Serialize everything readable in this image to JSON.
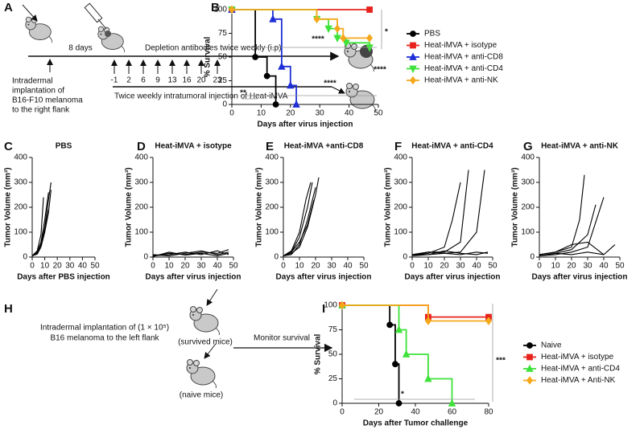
{
  "diagram_a": {
    "panel": "A",
    "interval": "8 days",
    "depletion": "Depletion antibodies twice weekly (i.p)",
    "days": [
      "-1",
      "2",
      "6",
      "9",
      "13",
      "16",
      "20",
      "23"
    ],
    "implant": [
      "Intradermal",
      "implantation of",
      "B16-F10 melanoma",
      "to the right flank"
    ],
    "injection": "Twice weekly intratumoral injection of Heat-iMVA"
  },
  "diagram_h": {
    "panel": "H",
    "implant": [
      "Intradermal implantation of (1 × 10⁵)",
      "B16 melanoma to the left flank"
    ],
    "survived": "(survived mice)",
    "naive": "(naive mice)",
    "monitor": "Monitor survival"
  },
  "chart_data": [
    {
      "type": "line",
      "step": true,
      "markers": true,
      "panel": "B",
      "xlabel": "Days after virus injection",
      "ylabel": "% Survival",
      "xlim": [
        0,
        50
      ],
      "xticks": [
        0,
        10,
        20,
        30,
        40,
        50
      ],
      "ylim": [
        0,
        100
      ],
      "yticks": [
        0,
        25,
        50,
        75,
        100
      ],
      "legend": "right",
      "series": [
        {
          "name": "PBS",
          "color": "#000000",
          "marker": "circle",
          "x": [
            0,
            8,
            12,
            15
          ],
          "values": [
            100,
            50,
            30,
            0
          ]
        },
        {
          "name": "Heat-iMVA + isotype",
          "color": "#e8231d",
          "marker": "square",
          "x": [
            0,
            47
          ],
          "values": [
            100,
            100
          ]
        },
        {
          "name": "Heat-iMVA + anti-CD8",
          "color": "#1f2fd6",
          "marker": "triangle",
          "x": [
            0,
            14,
            17,
            20,
            22
          ],
          "values": [
            100,
            90,
            40,
            20,
            0
          ]
        },
        {
          "name": "Heat-iMVA + anti-CD4",
          "color": "#3ee23a",
          "marker": "triangle-down",
          "x": [
            0,
            29,
            33,
            36,
            39,
            47
          ],
          "values": [
            100,
            90,
            80,
            70,
            65,
            60
          ]
        },
        {
          "name": "Heat-iMVA + anti-NK",
          "color": "#f6a81c",
          "marker": "diamond",
          "x": [
            0,
            29,
            36,
            38,
            47
          ],
          "values": [
            100,
            90,
            80,
            70,
            70
          ]
        }
      ],
      "annotations": [
        "*",
        "****",
        "****",
        "****",
        "**"
      ]
    },
    {
      "type": "line",
      "step": false,
      "markers": false,
      "panel": "C",
      "title": "PBS",
      "color": "#000000",
      "xlabel": "Days after PBS injection",
      "ylabel": "Tumor Volume (mm³)",
      "xlim": [
        0,
        50
      ],
      "xticks": [
        0,
        10,
        20,
        30,
        40,
        50
      ],
      "ylim": [
        0,
        400
      ],
      "yticks": [
        0,
        100,
        200,
        300,
        400
      ],
      "series": [
        {
          "x": [
            0,
            4,
            7,
            10,
            13
          ],
          "values": [
            5,
            20,
            60,
            150,
            260
          ]
        },
        {
          "x": [
            0,
            4,
            7,
            10,
            13,
            15
          ],
          "values": [
            5,
            15,
            50,
            120,
            230,
            300
          ]
        },
        {
          "x": [
            0,
            4,
            7,
            9
          ],
          "values": [
            5,
            25,
            90,
            240
          ]
        },
        {
          "x": [
            0,
            4,
            7,
            10,
            13
          ],
          "values": [
            5,
            18,
            55,
            110,
            190
          ]
        },
        {
          "x": [
            0,
            4,
            7,
            10,
            13,
            15
          ],
          "values": [
            5,
            12,
            40,
            100,
            180,
            270
          ]
        }
      ]
    },
    {
      "type": "line",
      "step": false,
      "markers": false,
      "panel": "D",
      "title": "Heat-iMVA + isotype",
      "color": "#000000",
      "xlabel": "Days after virus injection",
      "ylabel": "Tumor Volume (mm³)",
      "xlim": [
        0,
        50
      ],
      "xticks": [
        0,
        10,
        20,
        30,
        40,
        50
      ],
      "ylim": [
        0,
        400
      ],
      "yticks": [
        0,
        100,
        200,
        300,
        400
      ],
      "series": [
        {
          "x": [
            0,
            10,
            20,
            30,
            40,
            47
          ],
          "values": [
            5,
            15,
            10,
            20,
            15,
            30
          ]
        },
        {
          "x": [
            0,
            10,
            20,
            30,
            40,
            47
          ],
          "values": [
            5,
            10,
            20,
            10,
            25,
            10
          ]
        },
        {
          "x": [
            0,
            10,
            20,
            30,
            40,
            47
          ],
          "values": [
            10,
            5,
            15,
            25,
            10,
            20
          ]
        },
        {
          "x": [
            0,
            10,
            20,
            30,
            40,
            47
          ],
          "values": [
            2,
            20,
            8,
            15,
            5,
            15
          ]
        }
      ]
    },
    {
      "type": "line",
      "step": false,
      "markers": false,
      "panel": "E",
      "title": "Heat-iMVA +anti-CD8",
      "color": "#000000",
      "xlabel": "Days after virus injection",
      "ylabel": "Tumor Volume (mm³)",
      "xlim": [
        0,
        50
      ],
      "xticks": [
        0,
        10,
        20,
        30,
        40,
        50
      ],
      "ylim": [
        0,
        400
      ],
      "yticks": [
        0,
        100,
        200,
        300,
        400
      ],
      "series": [
        {
          "x": [
            0,
            5,
            10,
            15,
            18
          ],
          "values": [
            5,
            20,
            80,
            200,
            300
          ]
        },
        {
          "x": [
            0,
            5,
            10,
            15,
            20,
            22
          ],
          "values": [
            5,
            15,
            40,
            120,
            250,
            320
          ]
        },
        {
          "x": [
            0,
            5,
            10,
            14,
            17
          ],
          "values": [
            5,
            25,
            100,
            230,
            300
          ]
        },
        {
          "x": [
            0,
            5,
            10,
            15,
            20
          ],
          "values": [
            5,
            10,
            50,
            150,
            280
          ]
        },
        {
          "x": [
            0,
            5,
            10,
            15,
            19
          ],
          "values": [
            5,
            20,
            60,
            130,
            230
          ]
        }
      ]
    },
    {
      "type": "line",
      "step": false,
      "markers": false,
      "panel": "F",
      "title": "Heat-iMVA + anti-CD4",
      "color": "#000000",
      "xlabel": "Days after virus injection",
      "ylabel": "Tumor Volume (mm³)",
      "xlim": [
        0,
        50
      ],
      "xticks": [
        0,
        10,
        20,
        30,
        40,
        50
      ],
      "ylim": [
        0,
        400
      ],
      "yticks": [
        0,
        100,
        200,
        300,
        400
      ],
      "series": [
        {
          "x": [
            0,
            10,
            20,
            30,
            35
          ],
          "values": [
            10,
            20,
            20,
            60,
            350
          ]
        },
        {
          "x": [
            0,
            10,
            20,
            25,
            30
          ],
          "values": [
            10,
            15,
            40,
            150,
            300
          ]
        },
        {
          "x": [
            0,
            10,
            20,
            30,
            40,
            45
          ],
          "values": [
            10,
            10,
            15,
            20,
            100,
            350
          ]
        },
        {
          "x": [
            0,
            10,
            20,
            30,
            40,
            47
          ],
          "values": [
            10,
            20,
            15,
            10,
            20,
            15
          ]
        },
        {
          "x": [
            0,
            10,
            20,
            30,
            40,
            47
          ],
          "values": [
            5,
            10,
            25,
            15,
            10,
            20
          ]
        }
      ]
    },
    {
      "type": "line",
      "step": false,
      "markers": false,
      "panel": "G",
      "title": "Heat-iMVA + anti-NK",
      "color": "#000000",
      "xlabel": "Days after virus injection",
      "ylabel": "Tumor Volume (mm³)",
      "xlim": [
        0,
        50
      ],
      "xticks": [
        0,
        10,
        20,
        30,
        40,
        50
      ],
      "ylim": [
        0,
        400
      ],
      "yticks": [
        0,
        100,
        200,
        300,
        400
      ],
      "series": [
        {
          "x": [
            0,
            10,
            20,
            25,
            28
          ],
          "values": [
            10,
            20,
            40,
            150,
            330
          ]
        },
        {
          "x": [
            0,
            10,
            20,
            30,
            35
          ],
          "values": [
            5,
            15,
            30,
            90,
            210
          ]
        },
        {
          "x": [
            0,
            10,
            20,
            30,
            40
          ],
          "values": [
            5,
            10,
            20,
            40,
            240
          ]
        },
        {
          "x": [
            0,
            10,
            20,
            30,
            40,
            47
          ],
          "values": [
            5,
            15,
            10,
            20,
            10,
            50
          ]
        },
        {
          "x": [
            0,
            10,
            20,
            30,
            40
          ],
          "values": [
            10,
            20,
            50,
            60,
            10
          ]
        }
      ]
    },
    {
      "type": "line",
      "step": true,
      "markers": true,
      "panel": "I",
      "xlabel": "Days after Tumor challenge",
      "ylabel": "% Survival",
      "xlim": [
        0,
        80
      ],
      "xticks": [
        0,
        20,
        40,
        60,
        80
      ],
      "ylim": [
        0,
        100
      ],
      "yticks": [
        0,
        25,
        50,
        75,
        100
      ],
      "legend": "right",
      "series": [
        {
          "name": "Naive",
          "color": "#000000",
          "marker": "circle",
          "x": [
            0,
            26,
            29,
            31
          ],
          "values": [
            100,
            80,
            40,
            0
          ]
        },
        {
          "name": "Heat-iMVA + isotype",
          "color": "#e8231d",
          "marker": "square",
          "x": [
            0,
            47,
            80
          ],
          "values": [
            100,
            88,
            88
          ]
        },
        {
          "name": "Heat-iMVA + anti-CD4",
          "color": "#3ee23a",
          "marker": "triangle",
          "x": [
            0,
            31,
            35,
            47,
            60
          ],
          "values": [
            100,
            75,
            50,
            25,
            0
          ]
        },
        {
          "name": "Heat-iMVA + Anti-NK",
          "color": "#f6a81c",
          "marker": "diamond",
          "x": [
            0,
            47,
            80
          ],
          "values": [
            100,
            84,
            84
          ]
        }
      ],
      "annotations": [
        "***",
        "*"
      ]
    }
  ]
}
